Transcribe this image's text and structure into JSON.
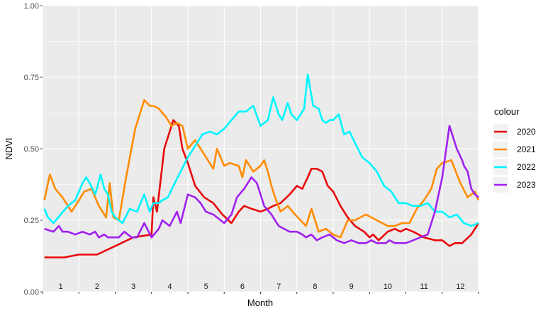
{
  "chart_data": {
    "type": "line",
    "xlabel": "Month",
    "ylabel": "NDVI",
    "ylim": [
      0,
      1
    ],
    "xlim": [
      0,
      12
    ],
    "y_ticks": [
      "0.00",
      "0.25",
      "0.50",
      "0.75",
      "1.00"
    ],
    "categories": [
      "1",
      "2",
      "3",
      "4",
      "5",
      "6",
      "7",
      "8",
      "9",
      "10",
      "11",
      "12"
    ],
    "grid": true,
    "legend": {
      "title": "colour",
      "placement": "right"
    },
    "series": [
      {
        "name": "2020",
        "color": "#e8090c",
        "x": [
          0.05,
          0.6,
          1.0,
          1.5,
          2.0,
          2.5,
          3.0,
          3.05,
          3.15,
          3.35,
          3.6,
          3.75,
          3.85,
          4.0,
          4.2,
          4.45,
          4.7,
          4.95,
          5.2,
          5.4,
          5.55,
          5.75,
          6.0,
          6.2,
          6.35,
          6.55,
          6.8,
          7.0,
          7.15,
          7.3,
          7.4,
          7.55,
          7.7,
          7.85,
          8.0,
          8.2,
          8.4,
          8.6,
          8.85,
          9.0,
          9.1,
          9.25,
          9.5,
          9.7,
          9.85,
          10.0,
          10.2,
          10.5,
          10.8,
          11.0,
          11.2,
          11.35,
          11.55,
          11.8,
          12.0
        ],
        "values": [
          0.12,
          0.12,
          0.13,
          0.13,
          0.16,
          0.19,
          0.2,
          0.33,
          0.28,
          0.5,
          0.6,
          0.58,
          0.5,
          0.45,
          0.37,
          0.33,
          0.31,
          0.27,
          0.24,
          0.28,
          0.3,
          0.29,
          0.28,
          0.29,
          0.3,
          0.31,
          0.34,
          0.37,
          0.36,
          0.4,
          0.43,
          0.43,
          0.42,
          0.37,
          0.35,
          0.3,
          0.26,
          0.23,
          0.21,
          0.19,
          0.2,
          0.18,
          0.21,
          0.22,
          0.21,
          0.22,
          0.21,
          0.19,
          0.18,
          0.18,
          0.16,
          0.17,
          0.17,
          0.2,
          0.24
        ]
      },
      {
        "name": "2021",
        "color": "#ff8c00",
        "x": [
          0.05,
          0.2,
          0.35,
          0.55,
          0.8,
          1.0,
          1.15,
          1.35,
          1.55,
          1.75,
          1.85,
          1.95,
          2.1,
          2.3,
          2.55,
          2.8,
          2.95,
          3.05,
          3.2,
          3.4,
          3.55,
          3.7,
          3.85,
          4.0,
          4.2,
          4.5,
          4.7,
          4.8,
          5.0,
          5.15,
          5.4,
          5.5,
          5.6,
          5.8,
          6.0,
          6.1,
          6.2,
          6.3,
          6.4,
          6.55,
          6.75,
          6.95,
          7.1,
          7.25,
          7.4,
          7.6,
          7.8,
          8.0,
          8.2,
          8.4,
          8.6,
          8.75,
          8.9,
          9.05,
          9.2,
          9.5,
          9.7,
          9.9,
          10.0,
          10.1,
          10.3,
          10.5,
          10.7,
          10.85,
          11.0,
          11.25,
          11.5,
          11.7,
          11.9,
          12.0
        ],
        "values": [
          0.32,
          0.41,
          0.36,
          0.33,
          0.28,
          0.32,
          0.35,
          0.36,
          0.3,
          0.26,
          0.38,
          0.26,
          0.25,
          0.4,
          0.57,
          0.67,
          0.65,
          0.65,
          0.64,
          0.61,
          0.58,
          0.59,
          0.58,
          0.5,
          0.53,
          0.47,
          0.43,
          0.5,
          0.44,
          0.45,
          0.44,
          0.4,
          0.46,
          0.42,
          0.44,
          0.46,
          0.42,
          0.37,
          0.33,
          0.28,
          0.3,
          0.27,
          0.25,
          0.23,
          0.29,
          0.21,
          0.22,
          0.2,
          0.19,
          0.25,
          0.25,
          0.26,
          0.27,
          0.26,
          0.25,
          0.23,
          0.23,
          0.24,
          0.24,
          0.24,
          0.29,
          0.32,
          0.36,
          0.43,
          0.45,
          0.46,
          0.38,
          0.33,
          0.35,
          0.32
        ]
      },
      {
        "name": "2022",
        "color": "#00f5ff",
        "x": [
          0.05,
          0.15,
          0.3,
          0.5,
          0.7,
          0.9,
          1.1,
          1.2,
          1.3,
          1.45,
          1.6,
          1.7,
          1.8,
          1.9,
          2.0,
          2.2,
          2.4,
          2.6,
          2.8,
          2.95,
          3.05,
          3.2,
          3.3,
          3.45,
          3.6,
          3.8,
          4.0,
          4.2,
          4.4,
          4.6,
          4.8,
          5.0,
          5.2,
          5.4,
          5.6,
          5.8,
          6.0,
          6.2,
          6.35,
          6.5,
          6.6,
          6.75,
          6.85,
          7.0,
          7.1,
          7.2,
          7.3,
          7.45,
          7.6,
          7.7,
          7.8,
          7.9,
          8.0,
          8.15,
          8.3,
          8.45,
          8.6,
          8.8,
          9.0,
          9.2,
          9.4,
          9.6,
          9.8,
          10.0,
          10.2,
          10.4,
          10.6,
          10.8,
          11.0,
          11.2,
          11.4,
          11.6,
          11.8,
          12.0
        ],
        "values": [
          0.29,
          0.26,
          0.24,
          0.27,
          0.3,
          0.32,
          0.38,
          0.4,
          0.38,
          0.34,
          0.41,
          0.36,
          0.34,
          0.28,
          0.26,
          0.24,
          0.29,
          0.28,
          0.34,
          0.28,
          0.31,
          0.31,
          0.32,
          0.33,
          0.37,
          0.42,
          0.47,
          0.51,
          0.55,
          0.56,
          0.55,
          0.57,
          0.6,
          0.63,
          0.63,
          0.65,
          0.58,
          0.6,
          0.68,
          0.62,
          0.6,
          0.66,
          0.62,
          0.6,
          0.62,
          0.64,
          0.76,
          0.65,
          0.64,
          0.6,
          0.59,
          0.6,
          0.6,
          0.62,
          0.55,
          0.56,
          0.52,
          0.47,
          0.45,
          0.42,
          0.37,
          0.35,
          0.31,
          0.31,
          0.3,
          0.3,
          0.31,
          0.28,
          0.28,
          0.26,
          0.27,
          0.24,
          0.23,
          0.24
        ]
      },
      {
        "name": "2023",
        "color": "#a020f0",
        "x": [
          0.05,
          0.3,
          0.45,
          0.55,
          0.7,
          0.9,
          1.1,
          1.3,
          1.45,
          1.55,
          1.7,
          1.8,
          1.95,
          2.1,
          2.25,
          2.45,
          2.6,
          2.8,
          3.0,
          3.2,
          3.3,
          3.5,
          3.7,
          3.8,
          4.0,
          4.2,
          4.35,
          4.5,
          4.7,
          4.9,
          5.0,
          5.2,
          5.35,
          5.55,
          5.75,
          5.9,
          6.1,
          6.3,
          6.5,
          6.65,
          6.8,
          7.0,
          7.15,
          7.25,
          7.4,
          7.55,
          7.7,
          7.9,
          8.1,
          8.3,
          8.5,
          8.7,
          8.9,
          9.05,
          9.2,
          9.3,
          9.45,
          9.55,
          9.7,
          9.85,
          10.0,
          10.2,
          10.4,
          10.6,
          10.8,
          11.0,
          11.2,
          11.4,
          11.55,
          11.6,
          11.7,
          11.8,
          11.9,
          12.0
        ],
        "values": [
          0.22,
          0.21,
          0.23,
          0.21,
          0.21,
          0.2,
          0.21,
          0.2,
          0.21,
          0.19,
          0.2,
          0.19,
          0.19,
          0.19,
          0.21,
          0.19,
          0.19,
          0.24,
          0.19,
          0.22,
          0.25,
          0.23,
          0.28,
          0.24,
          0.34,
          0.33,
          0.31,
          0.28,
          0.27,
          0.25,
          0.24,
          0.27,
          0.33,
          0.36,
          0.4,
          0.38,
          0.3,
          0.27,
          0.23,
          0.22,
          0.21,
          0.21,
          0.2,
          0.19,
          0.2,
          0.18,
          0.19,
          0.2,
          0.18,
          0.17,
          0.18,
          0.17,
          0.17,
          0.18,
          0.17,
          0.17,
          0.17,
          0.18,
          0.17,
          0.17,
          0.17,
          0.18,
          0.19,
          0.2,
          0.28,
          0.4,
          0.58,
          0.5,
          0.46,
          0.44,
          0.42,
          0.36,
          0.34,
          0.33
        ]
      }
    ]
  }
}
